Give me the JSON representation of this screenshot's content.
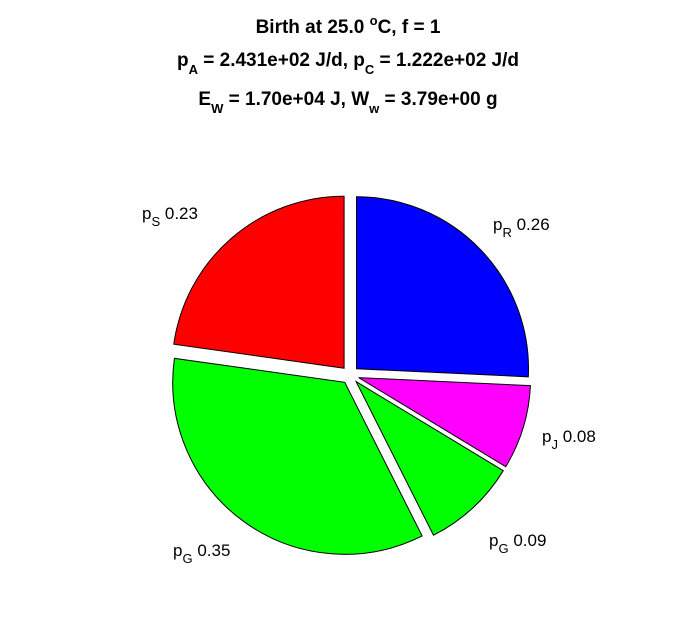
{
  "chart_data": {
    "type": "pie",
    "title": {
      "line1": {
        "before_sup": "Birth at 25.0 ",
        "sup": "o",
        "after_sup": "C, f = 1"
      },
      "line2": {
        "a_base": "p",
        "a_sub": "A",
        "a_text": " = 2.431e+02 J/d, ",
        "c_base": "p",
        "c_sub": "C",
        "c_text": " = 1.222e+02 J/d"
      },
      "line3": {
        "e_base": "E",
        "e_sub": "W",
        "e_text": " = 1.70e+04 J, ",
        "w_base": "W",
        "w_sub": "w",
        "w_text": " = 3.79e+00 g"
      }
    },
    "slices": [
      {
        "base": "p",
        "sub": "R",
        "value_text": " 0.26",
        "value": 0.26,
        "color": "#0000ff",
        "exploded": true
      },
      {
        "base": "p",
        "sub": "J",
        "value_text": " 0.08",
        "value": 0.08,
        "color": "#ff00ff",
        "exploded": true
      },
      {
        "base": "p",
        "sub": "G",
        "value_text": " 0.09",
        "value": 0.09,
        "color": "#00ff00",
        "exploded": true
      },
      {
        "base": "p",
        "sub": "G",
        "value_text": " 0.35",
        "value": 0.35,
        "color": "#00ff00",
        "exploded": true
      },
      {
        "base": "p",
        "sub": "S",
        "value_text": " 0.23",
        "value": 0.23,
        "color": "#ff0000",
        "exploded": true
      }
    ]
  }
}
